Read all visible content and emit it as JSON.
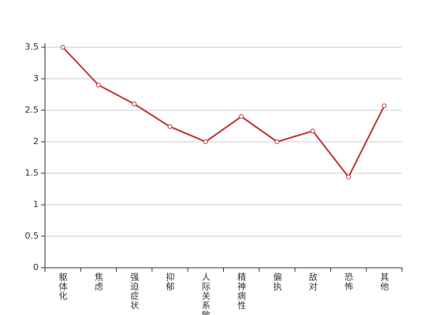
{
  "chart_data": {
    "type": "line",
    "categories": [
      "躯体化",
      "焦虑",
      "强迫症状",
      "抑郁",
      "人际关系敏感",
      "精神病性",
      "偏执",
      "敌对",
      "恐怖",
      "其他"
    ],
    "values": [
      3.5,
      2.9,
      2.6,
      2.24,
      2.0,
      2.4,
      2.0,
      2.17,
      1.44,
      2.57
    ],
    "color": "#c23531",
    "ylim": [
      0,
      3.5
    ],
    "yticks": [
      0,
      0.5,
      1,
      1.5,
      2,
      2.5,
      3,
      3.5
    ],
    "grid": true
  }
}
